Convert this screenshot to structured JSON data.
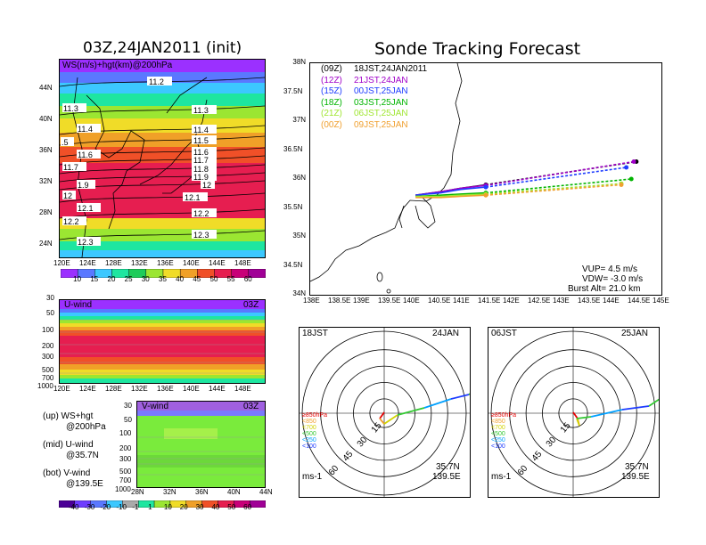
{
  "left": {
    "title": "03Z,24JAN2011 (init)",
    "map_label": "WS(m/s)+hgt(km)@200hPa",
    "lat_ticks": [
      "44N",
      "40N",
      "36N",
      "32N",
      "28N",
      "24N"
    ],
    "lon_ticks": [
      "120E",
      "124E",
      "128E",
      "132E",
      "136E",
      "140E",
      "144E",
      "148E"
    ],
    "contour_labels": [
      "11.2",
      "11.3",
      "11.4",
      "11.5",
      "11.6",
      "11.7",
      "11.8",
      "11.9",
      "12",
      "12.1",
      "12.2",
      "12.3"
    ],
    "left_labels": [
      "11.3",
      "11.4",
      ".5",
      "11.6",
      "11.7",
      "1.9",
      "12",
      "12.1",
      "12.2",
      "12.3"
    ],
    "colorbar_ws": [
      "10",
      "15",
      "20",
      "25",
      "30",
      "35",
      "40",
      "45",
      "50",
      "55",
      "60"
    ],
    "uwind_label": "U-wind",
    "uwind_time": "03Z",
    "vwind_label": "V-wind",
    "vwind_time": "03Z",
    "pres_ticks": [
      "30",
      "50",
      "100",
      "200",
      "300",
      "500",
      "700",
      "1000"
    ],
    "vlat_ticks": [
      "28N",
      "32N",
      "36N",
      "40N",
      "44N"
    ],
    "colorbar_v": [
      "-40",
      "-30",
      "-20",
      "-10",
      "-1",
      "1",
      "10",
      "20",
      "30",
      "40",
      "50",
      "60"
    ],
    "legend": {
      "up1": "(up) WS+hgt",
      "up2": "@200hPa",
      "mid1": "(mid) U-wind",
      "mid2": "@35.7N",
      "bot1": "(bot) V-wind",
      "bot2": "@139.5E"
    }
  },
  "right": {
    "title": "Sonde Tracking Forecast",
    "lat_ticks": [
      "38N",
      "37.5N",
      "37N",
      "36.5N",
      "36N",
      "35.5N",
      "35N",
      "34.5N",
      "34N"
    ],
    "lon_ticks": [
      "138E",
      "138.5E",
      "139E",
      "139.5E",
      "140E",
      "140.5E",
      "141E",
      "141.5E",
      "142E",
      "142.5E",
      "143E",
      "143.5E",
      "144E",
      "144.5E",
      "145E"
    ],
    "runs": [
      {
        "utc": "(09Z)",
        "jst": "18JST,24JAN2011",
        "color": "#000000"
      },
      {
        "utc": "(12Z)",
        "jst": "21JST,24JAN",
        "color": "#a000c8"
      },
      {
        "utc": "(15Z)",
        "jst": "00JST,25JAN",
        "color": "#1e3cff"
      },
      {
        "utc": "(18Z)",
        "jst": "03JST,25JAN",
        "color": "#00b400"
      },
      {
        "utc": "(21Z)",
        "jst": "06JST,25JAN",
        "color": "#a0e632"
      },
      {
        "utc": "(00Z)",
        "jst": "09JST,25JAN",
        "color": "#f0a030"
      }
    ],
    "params": {
      "vup": "VUP= 4.5 m/s",
      "vdw": "VDW= -3.0 m/s",
      "burst": "Burst Alt= 21.0 km"
    }
  },
  "hodographs": [
    {
      "time": "18JST",
      "date": "24JAN",
      "lat": "35.7N",
      "lon": "139.5E",
      "unit": "ms-1",
      "rings": [
        "15",
        "30",
        "45",
        "60"
      ],
      "levels": [
        {
          "text": "≥850hPa",
          "color": "#e60000"
        },
        {
          "text": "<850",
          "color": "#f0a030"
        },
        {
          "text": "<700",
          "color": "#d2d200"
        },
        {
          "text": "<500",
          "color": "#32c832"
        },
        {
          "text": "<250",
          "color": "#00a0ff"
        },
        {
          "text": "<100",
          "color": "#1e3cff"
        }
      ]
    },
    {
      "time": "06JST",
      "date": "25JAN",
      "lat": "35.7N",
      "lon": "139.5E",
      "unit": "ms-1",
      "rings": [
        "15",
        "30",
        "45",
        "60"
      ],
      "levels": [
        {
          "text": "≥850hPa",
          "color": "#e60000"
        },
        {
          "text": "<850",
          "color": "#f0a030"
        },
        {
          "text": "<700",
          "color": "#d2d200"
        },
        {
          "text": "<500",
          "color": "#32c832"
        },
        {
          "text": "<250",
          "color": "#00a0ff"
        },
        {
          "text": "<100",
          "color": "#1e3cff"
        }
      ]
    }
  ],
  "chart_data": [
    {
      "type": "heatmap",
      "title": "03Z,24JAN2011 (init)",
      "label": "WS(m/s)+hgt(km)@200hPa",
      "xlim": [
        120,
        150
      ],
      "ylim": [
        22,
        48
      ],
      "colorbar": [
        10,
        15,
        20,
        25,
        30,
        35,
        40,
        45,
        50,
        55,
        60
      ],
      "contours_km": [
        11.2,
        11.3,
        11.4,
        11.5,
        11.6,
        11.7,
        11.8,
        11.9,
        12,
        12.1,
        12.2,
        12.3
      ]
    },
    {
      "type": "line",
      "title": "Sonde Tracking Forecast",
      "xlim": [
        138,
        145
      ],
      "ylim": [
        34,
        38
      ],
      "series": [
        {
          "name": "(09Z) 18JST,24JAN2011",
          "x": [
            140.1,
            140.6,
            141.0,
            141.5
          ],
          "y": [
            35.72,
            35.78,
            35.84,
            35.9
          ],
          "end": [
            144.5,
            36.3
          ]
        },
        {
          "name": "(12Z) 21JST,24JAN",
          "x": [
            140.1,
            140.6,
            141.0,
            141.5
          ],
          "y": [
            35.72,
            35.78,
            35.84,
            35.89
          ],
          "end": [
            144.45,
            36.3
          ]
        },
        {
          "name": "(15Z) 00JST,25JAN",
          "x": [
            140.1,
            140.6,
            141.0,
            141.5
          ],
          "y": [
            35.72,
            35.76,
            35.82,
            35.86
          ],
          "end": [
            144.3,
            36.2
          ]
        },
        {
          "name": "(18Z) 03JST,25JAN",
          "x": [
            140.1,
            140.6,
            141.0,
            141.5
          ],
          "y": [
            35.7,
            35.72,
            35.74,
            35.76
          ],
          "end": [
            144.4,
            36.0
          ]
        },
        {
          "name": "(21Z) 06JST,25JAN",
          "x": [
            140.1,
            140.6,
            141.0,
            141.5
          ],
          "y": [
            35.7,
            35.7,
            35.72,
            35.74
          ],
          "end": [
            144.2,
            35.92
          ]
        },
        {
          "name": "(00Z) 09JST,25JAN",
          "x": [
            140.1,
            140.6,
            141.0,
            141.5
          ],
          "y": [
            35.68,
            35.68,
            35.7,
            35.72
          ],
          "end": [
            144.2,
            35.9
          ]
        }
      ]
    }
  ]
}
